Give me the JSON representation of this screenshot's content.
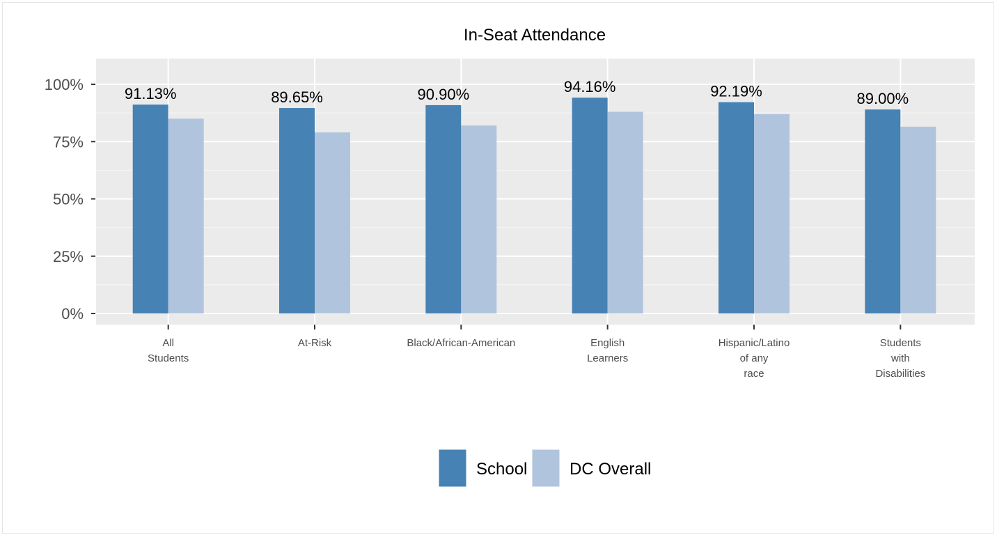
{
  "chart_data": {
    "type": "bar",
    "title": "In-Seat Attendance",
    "xlabel": "",
    "ylabel": "",
    "ylim": [
      0,
      1.05
    ],
    "yticks": [
      {
        "value": 0,
        "label": "0%"
      },
      {
        "value": 0.25,
        "label": "25%"
      },
      {
        "value": 0.5,
        "label": "50%"
      },
      {
        "value": 0.75,
        "label": "75%"
      },
      {
        "value": 1.0,
        "label": "100%"
      }
    ],
    "categories": [
      [
        "All",
        "Students"
      ],
      [
        "At-Risk"
      ],
      [
        "Black/African-American"
      ],
      [
        "English",
        "Learners"
      ],
      [
        "Hispanic/Latino",
        "of any",
        "race"
      ],
      [
        "Students",
        "with",
        "Disabilities"
      ]
    ],
    "series": [
      {
        "name": "School",
        "color": "#4682b4",
        "values": [
          0.9113,
          0.8965,
          0.909,
          0.9416,
          0.9219,
          0.89
        ]
      },
      {
        "name": "DC Overall",
        "color": "#b0c4de",
        "values": [
          0.85,
          0.79,
          0.82,
          0.88,
          0.87,
          0.815
        ]
      }
    ],
    "data_labels": [
      "91.13%",
      "89.65%",
      "90.90%",
      "94.16%",
      "92.19%",
      "89.00%"
    ],
    "grid": true,
    "panel_background": "#ebebeb",
    "legend_position": "bottom"
  }
}
